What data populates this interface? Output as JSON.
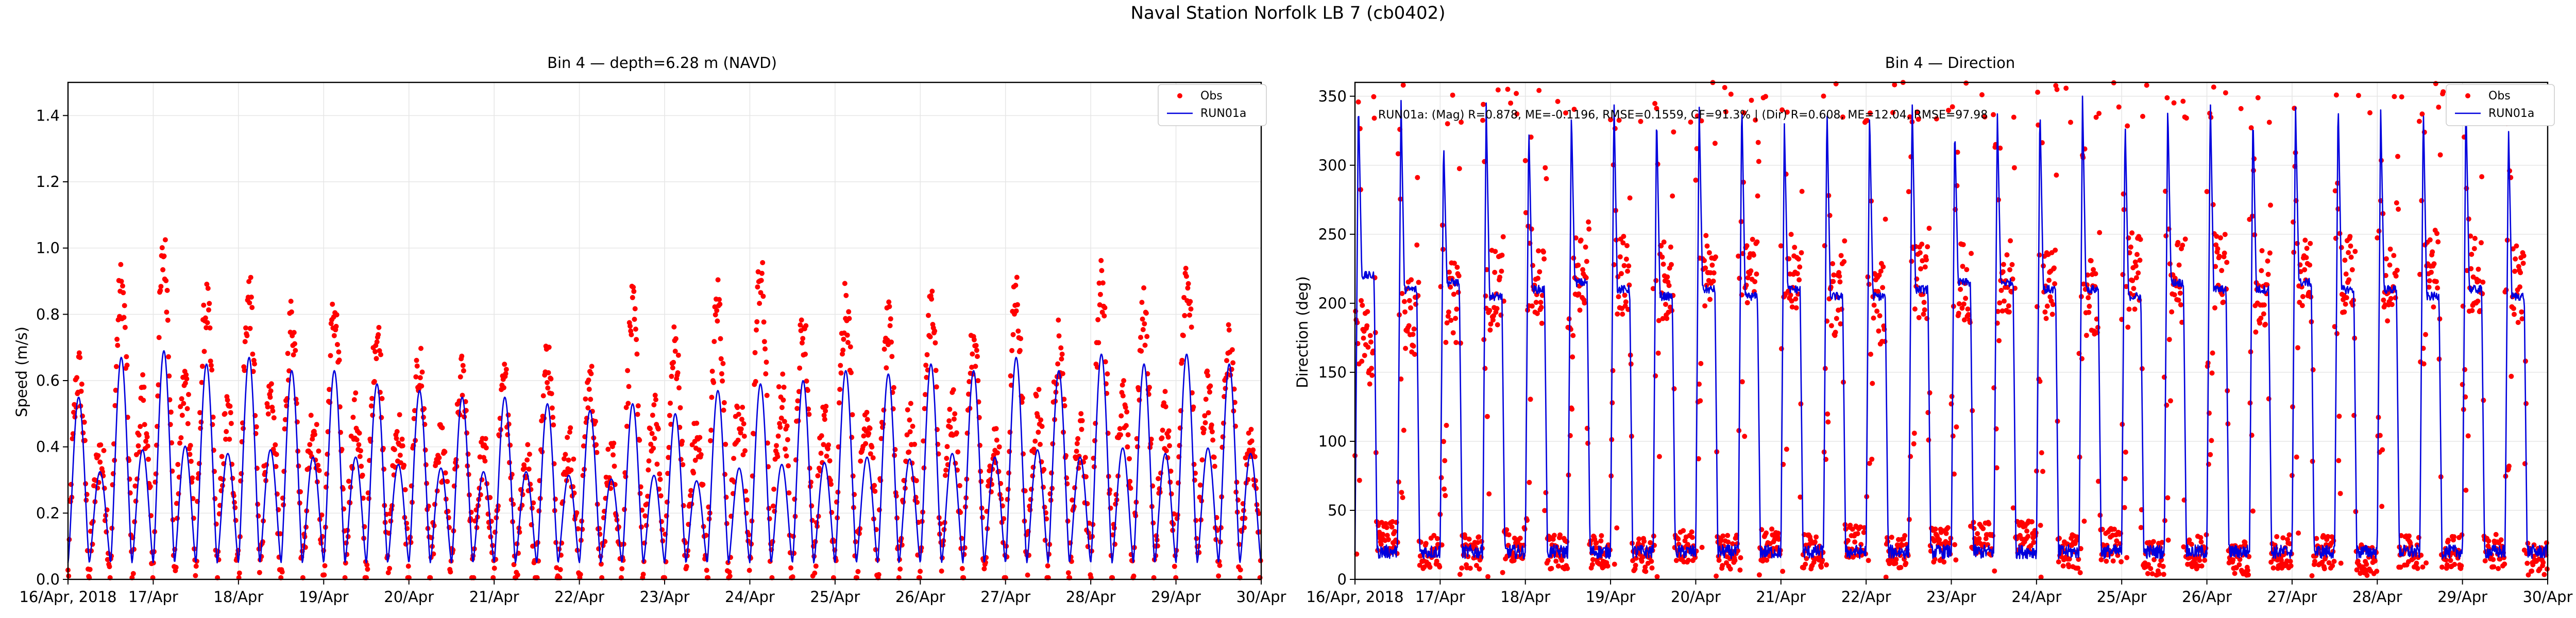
{
  "figure": {
    "suptitle": "Naval Station Norfolk LB 7 (cb0402)"
  },
  "chart_data": [
    {
      "type": "scatter+line",
      "title": "Bin 4 — depth=6.28 m (NAVD)",
      "xlabel": "",
      "ylabel": "Speed (m/s)",
      "xlim": [
        0,
        14
      ],
      "ylim": [
        0,
        1.5
      ],
      "x_ticks": [
        0,
        1,
        2,
        3,
        4,
        5,
        6,
        7,
        8,
        9,
        10,
        11,
        12,
        13,
        14
      ],
      "x_tick_labels": [
        "16/Apr, 2018",
        "17/Apr",
        "18/Apr",
        "19/Apr",
        "20/Apr",
        "21/Apr",
        "22/Apr",
        "23/Apr",
        "24/Apr",
        "25/Apr",
        "26/Apr",
        "27/Apr",
        "28/Apr",
        "29/Apr",
        "30/Apr"
      ],
      "y_ticks": [
        0,
        0.2,
        0.4,
        0.6,
        0.8,
        1.0,
        1.2,
        1.4
      ],
      "y_tick_labels": [
        "0.0",
        "0.2",
        "0.4",
        "0.6",
        "0.8",
        "1.0",
        "1.2",
        "1.4"
      ],
      "grid": true,
      "legend_position": "top-right",
      "legend": [
        "Obs",
        "RUN01a"
      ],
      "series_colors": {
        "obs": "#ff0000",
        "model": "#0000dd"
      },
      "peaks_description": "semidiurnal tidal speed, ~2 flood/ebb cycles per day; obs peaks 0.6-0.98 m/s, model peaks ~0.5-0.65 m/s",
      "peak_amplitudes_obs": [
        0.62,
        0.88,
        0.98,
        0.82,
        0.85,
        0.78,
        0.8,
        0.74,
        0.64,
        0.6,
        0.58,
        0.66,
        0.6,
        0.8,
        0.7,
        0.84,
        0.92,
        0.76,
        0.85,
        0.75,
        0.82,
        0.7,
        0.86,
        0.7,
        0.88,
        0.8,
        0.93,
        0.7
      ],
      "peak_amplitudes_model": [
        0.5,
        0.62,
        0.64,
        0.6,
        0.62,
        0.58,
        0.58,
        0.54,
        0.52,
        0.5,
        0.5,
        0.48,
        0.46,
        0.48,
        0.45,
        0.52,
        0.54,
        0.55,
        0.58,
        0.57,
        0.6,
        0.58,
        0.62,
        0.58,
        0.63,
        0.6,
        0.63,
        0.6
      ]
    },
    {
      "type": "scatter+line",
      "title": "Bin 4 — Direction",
      "xlabel": "",
      "ylabel": "Direction (deg)",
      "xlim": [
        0,
        14
      ],
      "ylim": [
        0,
        360
      ],
      "x_ticks": [
        0,
        1,
        2,
        3,
        4,
        5,
        6,
        7,
        8,
        9,
        10,
        11,
        12,
        13,
        14
      ],
      "x_tick_labels": [
        "16/Apr, 2018",
        "17/Apr",
        "18/Apr",
        "19/Apr",
        "20/Apr",
        "21/Apr",
        "22/Apr",
        "23/Apr",
        "24/Apr",
        "25/Apr",
        "26/Apr",
        "27/Apr",
        "28/Apr",
        "29/Apr",
        "30/Apr"
      ],
      "y_ticks": [
        0,
        50,
        100,
        150,
        200,
        250,
        300,
        350
      ],
      "y_tick_labels": [
        "0",
        "50",
        "100",
        "150",
        "200",
        "250",
        "300",
        "350"
      ],
      "grid": true,
      "legend_position": "top-right",
      "legend": [
        "Obs",
        "RUN01a"
      ],
      "series_colors": {
        "obs": "#ff0000",
        "model": "#0000dd"
      },
      "annotation": "RUN01a: (Mag) R=0.878, ME=-0.1196, RMSE=0.1559, CF=91.3% | (Dir) R=0.608, ME=12.04, RMSE=97.98",
      "ebb_direction_obs_deg": [
        170,
        190,
        200,
        210,
        215,
        225,
        220,
        215,
        225,
        220,
        220,
        205,
        200,
        215,
        215,
        220,
        210,
        205,
        225,
        215,
        225,
        210,
        225,
        220,
        215,
        225,
        220,
        215
      ],
      "flood_direction_obs_deg": [
        30,
        20,
        20,
        25,
        20,
        20,
        18,
        25,
        20,
        25,
        20,
        28,
        20,
        25,
        30,
        30,
        20,
        25,
        15,
        20,
        15,
        20,
        20,
        15,
        20,
        20,
        20,
        15
      ],
      "ebb_direction_model_deg": [
        220,
        210,
        215,
        205,
        210,
        215,
        210,
        205,
        210,
        205,
        210,
        205,
        205,
        210,
        215,
        215,
        210,
        210,
        205,
        215,
        210,
        210,
        215,
        210,
        210,
        205,
        210,
        205
      ],
      "model_spike_peak_deg": [
        350,
        350,
        320,
        345,
        330,
        340,
        350,
        340,
        345,
        350,
        330,
        345,
        340,
        350,
        330,
        340,
        345,
        350,
        335,
        345,
        350,
        340,
        345,
        350,
        340,
        345,
        350,
        330
      ]
    }
  ],
  "stats": {
    "mag": {
      "R": 0.878,
      "ME": -0.1196,
      "RMSE": 0.1559,
      "CF": "91.3%"
    },
    "dir": {
      "R": 0.608,
      "ME": 12.04,
      "RMSE": 97.98
    }
  }
}
